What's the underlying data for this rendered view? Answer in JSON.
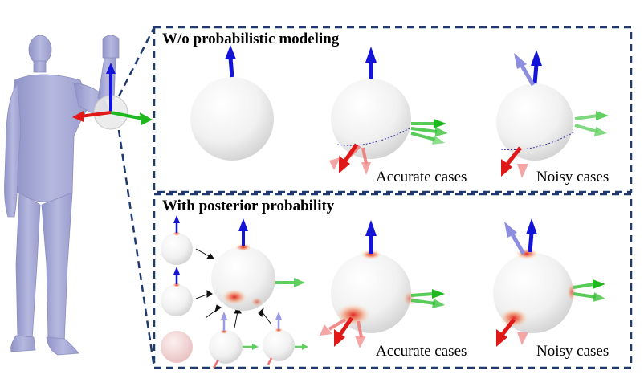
{
  "top_panel": {
    "title": "W/o probabilistic modeling",
    "captions": [
      "Accurate cases",
      "Noisy cases"
    ]
  },
  "bottom_panel": {
    "title": "With posterior probability",
    "captions": [
      "Accurate cases",
      "Noisy cases"
    ]
  },
  "colors": {
    "frame": "#1f3a6e",
    "body": "#a9acd6",
    "axis_x": "#e01818",
    "axis_y": "#1fb81f",
    "axis_z": "#1414d8",
    "heat": "#e02020"
  },
  "icons": [
    "human-body-figure",
    "joint-sphere",
    "axis-arrows",
    "probability-heatmap-sphere"
  ]
}
